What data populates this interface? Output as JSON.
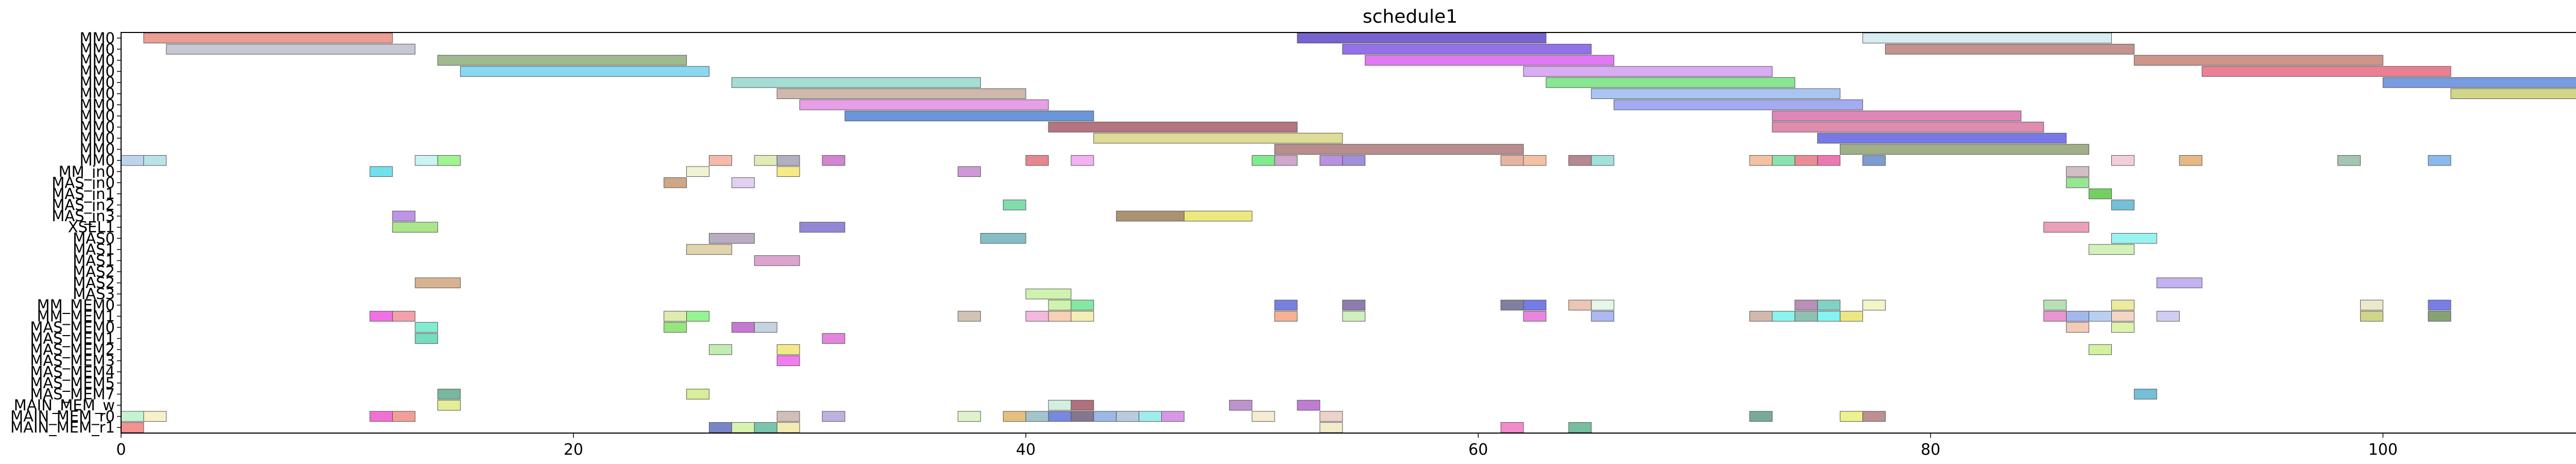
{
  "chart_data": {
    "type": "gantt",
    "title": "schedule1",
    "xlabel": "",
    "ylabel": "",
    "xlim": [
      0,
      114
    ],
    "x_ticks": [
      0,
      20,
      40,
      60,
      80,
      100
    ],
    "grid": false,
    "rows": [
      "MM0",
      "MM0",
      "MM0",
      "MM0",
      "MM0",
      "MM0",
      "MM0",
      "MM0",
      "MM0",
      "MM0",
      "MM0",
      "MM0",
      "MM_in0",
      "MAS_in0",
      "MAS_in1",
      "MAS_in2",
      "MAS_in3",
      "XSEL1",
      "MAS0",
      "MAS1",
      "MAS1",
      "MAS2",
      "MAS2",
      "MAS3",
      "MM_MEM0",
      "MM_MEM1",
      "MAS_MEM0",
      "MAS_MEM1",
      "MAS_MEM2",
      "MAS_MEM3",
      "MAS_MEM4",
      "MAS_MEM5",
      "MAS_MEM7",
      "MAIN_MEM_w",
      "MAIN_MEM_r0",
      "MAIN_MEM_r1"
    ],
    "bars": [
      {
        "row": 0,
        "start": 1,
        "end": 12,
        "color": "#e8877d"
      },
      {
        "row": 0,
        "start": 52,
        "end": 63,
        "color": "#5a3fc4"
      },
      {
        "row": 0,
        "start": 77,
        "end": 88,
        "color": "#cfe9ef"
      },
      {
        "row": 1,
        "start": 2,
        "end": 13,
        "color": "#b9bccb"
      },
      {
        "row": 1,
        "start": 54,
        "end": 65,
        "color": "#7b52e0"
      },
      {
        "row": 1,
        "start": 78,
        "end": 89,
        "color": "#b77a76"
      },
      {
        "row": 2,
        "start": 14,
        "end": 25,
        "color": "#8aab78"
      },
      {
        "row": 2,
        "start": 55,
        "end": 66,
        "color": "#da5cf2"
      },
      {
        "row": 2,
        "start": 89,
        "end": 100,
        "color": "#c37f70"
      },
      {
        "row": 3,
        "start": 15,
        "end": 26,
        "color": "#6fcff0"
      },
      {
        "row": 3,
        "start": 62,
        "end": 73,
        "color": "#d19af0"
      },
      {
        "row": 3,
        "start": 92,
        "end": 103,
        "color": "#e6647e"
      },
      {
        "row": 4,
        "start": 27,
        "end": 38,
        "color": "#8fd6c9"
      },
      {
        "row": 4,
        "start": 63,
        "end": 74,
        "color": "#6fe07a"
      },
      {
        "row": 4,
        "start": 100,
        "end": 111,
        "color": "#5b85d8"
      },
      {
        "row": 5,
        "start": 29,
        "end": 40,
        "color": "#c4a89c"
      },
      {
        "row": 5,
        "start": 65,
        "end": 76,
        "color": "#96b9ef"
      },
      {
        "row": 5,
        "start": 103,
        "end": 114,
        "color": "#c8cd6e"
      },
      {
        "row": 6,
        "start": 30,
        "end": 41,
        "color": "#e38ae2"
      },
      {
        "row": 6,
        "start": 66,
        "end": 77,
        "color": "#8f98ee"
      },
      {
        "row": 7,
        "start": 32,
        "end": 43,
        "color": "#4a7fd1"
      },
      {
        "row": 7,
        "start": 73,
        "end": 84,
        "color": "#d96aaa"
      },
      {
        "row": 8,
        "start": 41,
        "end": 52,
        "color": "#a45664"
      },
      {
        "row": 8,
        "start": 73,
        "end": 85,
        "color": "#d8739c"
      },
      {
        "row": 9,
        "start": 43,
        "end": 54,
        "color": "#d8d47e"
      },
      {
        "row": 9,
        "start": 75,
        "end": 86,
        "color": "#5a5ce0"
      },
      {
        "row": 10,
        "start": 51,
        "end": 62,
        "color": "#a87474"
      },
      {
        "row": 10,
        "start": 76,
        "end": 87,
        "color": "#8b9e6d"
      },
      {
        "row": 11,
        "start": 0,
        "end": 1,
        "color": "#aecbe8"
      },
      {
        "row": 11,
        "start": 1,
        "end": 2,
        "color": "#a9dde2"
      },
      {
        "row": 11,
        "start": 13,
        "end": 14,
        "color": "#bdf2ef"
      },
      {
        "row": 11,
        "start": 14,
        "end": 15,
        "color": "#8bf27a"
      },
      {
        "row": 11,
        "start": 26,
        "end": 27,
        "color": "#f5a99a"
      },
      {
        "row": 11,
        "start": 28,
        "end": 29,
        "color": "#d9e8a5"
      },
      {
        "row": 11,
        "start": 29,
        "end": 30,
        "color": "#a29db5"
      },
      {
        "row": 11,
        "start": 31,
        "end": 32,
        "color": "#c86ac6"
      },
      {
        "row": 11,
        "start": 40,
        "end": 41,
        "color": "#e06c78"
      },
      {
        "row": 11,
        "start": 42,
        "end": 43,
        "color": "#f29ff0"
      },
      {
        "row": 11,
        "start": 50,
        "end": 51,
        "color": "#62e872"
      },
      {
        "row": 11,
        "start": 51,
        "end": 52,
        "color": "#c692c0"
      },
      {
        "row": 11,
        "start": 53,
        "end": 54,
        "color": "#a879d8"
      },
      {
        "row": 11,
        "start": 54,
        "end": 55,
        "color": "#8d76d4"
      },
      {
        "row": 11,
        "start": 61,
        "end": 62,
        "color": "#e0a28e"
      },
      {
        "row": 11,
        "start": 62,
        "end": 63,
        "color": "#f2b58e"
      },
      {
        "row": 11,
        "start": 64,
        "end": 65,
        "color": "#a56e7a"
      },
      {
        "row": 11,
        "start": 65,
        "end": 66,
        "color": "#8ed9d4"
      },
      {
        "row": 11,
        "start": 72,
        "end": 73,
        "color": "#f2b58e"
      },
      {
        "row": 11,
        "start": 73,
        "end": 74,
        "color": "#6edd9e"
      },
      {
        "row": 11,
        "start": 74,
        "end": 75,
        "color": "#e7737e"
      },
      {
        "row": 11,
        "start": 75,
        "end": 76,
        "color": "#e85aa0"
      },
      {
        "row": 11,
        "start": 77,
        "end": 78,
        "color": "#5f86c8"
      },
      {
        "row": 11,
        "start": 88,
        "end": 89,
        "color": "#f2c2d6"
      },
      {
        "row": 11,
        "start": 91,
        "end": 92,
        "color": "#e2a86a"
      },
      {
        "row": 11,
        "start": 98,
        "end": 99,
        "color": "#8fb8a0"
      },
      {
        "row": 11,
        "start": 102,
        "end": 103,
        "color": "#6ea9ec"
      },
      {
        "row": 12,
        "start": 11,
        "end": 12,
        "color": "#56d8e8"
      },
      {
        "row": 12,
        "start": 25,
        "end": 26,
        "color": "#edf0c8"
      },
      {
        "row": 12,
        "start": 29,
        "end": 30,
        "color": "#f4e56e"
      },
      {
        "row": 12,
        "start": 37,
        "end": 38,
        "color": "#c482cf"
      },
      {
        "row": 12,
        "start": 86,
        "end": 87,
        "color": "#c8b0b8"
      },
      {
        "row": 13,
        "start": 24,
        "end": 25,
        "color": "#c3946a"
      },
      {
        "row": 13,
        "start": 27,
        "end": 28,
        "color": "#dcc6f0"
      },
      {
        "row": 13,
        "start": 86,
        "end": 87,
        "color": "#7ee27a"
      },
      {
        "row": 14,
        "start": 87,
        "end": 88,
        "color": "#56c43e"
      },
      {
        "row": 15,
        "start": 39,
        "end": 40,
        "color": "#66d69a"
      },
      {
        "row": 15,
        "start": 88,
        "end": 89,
        "color": "#56b2cf"
      },
      {
        "row": 16,
        "start": 12,
        "end": 13,
        "color": "#b07ee0"
      },
      {
        "row": 16,
        "start": 44,
        "end": 47,
        "color": "#9a7a52"
      },
      {
        "row": 16,
        "start": 47,
        "end": 50,
        "color": "#e8e560"
      },
      {
        "row": 17,
        "start": 12,
        "end": 14,
        "color": "#98e070"
      },
      {
        "row": 17,
        "start": 30,
        "end": 32,
        "color": "#7b6ccc"
      },
      {
        "row": 17,
        "start": 85,
        "end": 87,
        "color": "#e78aa8"
      },
      {
        "row": 18,
        "start": 26,
        "end": 28,
        "color": "#a898b4"
      },
      {
        "row": 18,
        "start": 38,
        "end": 40,
        "color": "#6aaeb8"
      },
      {
        "row": 18,
        "start": 88,
        "end": 90,
        "color": "#84f0f0"
      },
      {
        "row": 19,
        "start": 25,
        "end": 27,
        "color": "#dccb98"
      },
      {
        "row": 19,
        "start": 87,
        "end": 89,
        "color": "#c9efaa"
      },
      {
        "row": 20,
        "start": 28,
        "end": 30,
        "color": "#d391c6"
      },
      {
        "row": 22,
        "start": 13,
        "end": 15,
        "color": "#cfa27a"
      },
      {
        "row": 22,
        "start": 90,
        "end": 92,
        "color": "#b7a0ec"
      },
      {
        "row": 23,
        "start": 40,
        "end": 42,
        "color": "#c5f09a"
      },
      {
        "row": 24,
        "start": 41,
        "end": 42,
        "color": "#c5f09a"
      },
      {
        "row": 24,
        "start": 42,
        "end": 43,
        "color": "#6be08f"
      },
      {
        "row": 24,
        "start": 51,
        "end": 52,
        "color": "#5a64d8"
      },
      {
        "row": 24,
        "start": 54,
        "end": 55,
        "color": "#74609c"
      },
      {
        "row": 24,
        "start": 61,
        "end": 62,
        "color": "#65638c"
      },
      {
        "row": 24,
        "start": 62,
        "end": 63,
        "color": "#555fe0"
      },
      {
        "row": 24,
        "start": 64,
        "end": 65,
        "color": "#e8b8a5"
      },
      {
        "row": 24,
        "start": 65,
        "end": 66,
        "color": "#dff5e0"
      },
      {
        "row": 24,
        "start": 74,
        "end": 75,
        "color": "#a877a8"
      },
      {
        "row": 24,
        "start": 75,
        "end": 76,
        "color": "#67c7b8"
      },
      {
        "row": 24,
        "start": 77,
        "end": 78,
        "color": "#f0f1bc"
      },
      {
        "row": 24,
        "start": 85,
        "end": 86,
        "color": "#a8d9a8"
      },
      {
        "row": 24,
        "start": 88,
        "end": 89,
        "color": "#e8e58a"
      },
      {
        "row": 24,
        "start": 99,
        "end": 100,
        "color": "#e8e3c0"
      },
      {
        "row": 24,
        "start": 102,
        "end": 103,
        "color": "#5a62e0"
      },
      {
        "row": 25,
        "start": 11,
        "end": 12,
        "color": "#ef50e0"
      },
      {
        "row": 25,
        "start": 12,
        "end": 13,
        "color": "#f28a9a"
      },
      {
        "row": 25,
        "start": 24,
        "end": 25,
        "color": "#d8e8a0"
      },
      {
        "row": 25,
        "start": 25,
        "end": 26,
        "color": "#7ef07a"
      },
      {
        "row": 25,
        "start": 37,
        "end": 38,
        "color": "#c6b6a2"
      },
      {
        "row": 25,
        "start": 40,
        "end": 41,
        "color": "#f2a8d8"
      },
      {
        "row": 25,
        "start": 41,
        "end": 42,
        "color": "#f5c6a5"
      },
      {
        "row": 25,
        "start": 42,
        "end": 43,
        "color": "#f0eaa0"
      },
      {
        "row": 25,
        "start": 51,
        "end": 52,
        "color": "#f4a07e"
      },
      {
        "row": 25,
        "start": 54,
        "end": 55,
        "color": "#c4ecb0"
      },
      {
        "row": 25,
        "start": 62,
        "end": 63,
        "color": "#e46ad8"
      },
      {
        "row": 25,
        "start": 65,
        "end": 66,
        "color": "#9aa8f0"
      },
      {
        "row": 25,
        "start": 72,
        "end": 73,
        "color": "#c8a898"
      },
      {
        "row": 25,
        "start": 73,
        "end": 74,
        "color": "#6ff0ea"
      },
      {
        "row": 25,
        "start": 74,
        "end": 75,
        "color": "#78b2a0"
      },
      {
        "row": 25,
        "start": 75,
        "end": 76,
        "color": "#67f2ee"
      },
      {
        "row": 25,
        "start": 76,
        "end": 77,
        "color": "#e8e068"
      },
      {
        "row": 25,
        "start": 85,
        "end": 86,
        "color": "#e77ec6"
      },
      {
        "row": 25,
        "start": 86,
        "end": 87,
        "color": "#8ea8e8"
      },
      {
        "row": 25,
        "start": 87,
        "end": 88,
        "color": "#a9c4ef"
      },
      {
        "row": 25,
        "start": 88,
        "end": 89,
        "color": "#f2ccb8"
      },
      {
        "row": 25,
        "start": 90,
        "end": 91,
        "color": "#c4c3ef"
      },
      {
        "row": 25,
        "start": 99,
        "end": 100,
        "color": "#c8cb6e"
      },
      {
        "row": 25,
        "start": 102,
        "end": 103,
        "color": "#6b8d56"
      },
      {
        "row": 26,
        "start": 13,
        "end": 14,
        "color": "#66e8c8"
      },
      {
        "row": 26,
        "start": 24,
        "end": 25,
        "color": "#80e060"
      },
      {
        "row": 26,
        "start": 27,
        "end": 28,
        "color": "#b85ac8"
      },
      {
        "row": 26,
        "start": 28,
        "end": 29,
        "color": "#b8c8d8"
      },
      {
        "row": 26,
        "start": 86,
        "end": 87,
        "color": "#f2bfa8"
      },
      {
        "row": 26,
        "start": 88,
        "end": 89,
        "color": "#d8f09a"
      },
      {
        "row": 27,
        "start": 13,
        "end": 14,
        "color": "#58d6b0"
      },
      {
        "row": 27,
        "start": 31,
        "end": 32,
        "color": "#dd69d8"
      },
      {
        "row": 28,
        "start": 26,
        "end": 27,
        "color": "#b5e8a0"
      },
      {
        "row": 28,
        "start": 29,
        "end": 30,
        "color": "#f0e46e"
      },
      {
        "row": 28,
        "start": 87,
        "end": 88,
        "color": "#c8ef8a"
      },
      {
        "row": 29,
        "start": 29,
        "end": 30,
        "color": "#ee60ee"
      },
      {
        "row": 32,
        "start": 14,
        "end": 15,
        "color": "#5aa888"
      },
      {
        "row": 32,
        "start": 25,
        "end": 26,
        "color": "#d0ec80"
      },
      {
        "row": 32,
        "start": 89,
        "end": 90,
        "color": "#56b0cf"
      },
      {
        "row": 33,
        "start": 14,
        "end": 15,
        "color": "#dfe880"
      },
      {
        "row": 33,
        "start": 41,
        "end": 42,
        "color": "#c8ecd8"
      },
      {
        "row": 33,
        "start": 42,
        "end": 43,
        "color": "#a05060"
      },
      {
        "row": 33,
        "start": 49,
        "end": 50,
        "color": "#b07ac0"
      },
      {
        "row": 33,
        "start": 52,
        "end": 53,
        "color": "#b060c8"
      },
      {
        "row": 33,
        "start": 111,
        "end": 112,
        "color": "#8ab0e8"
      },
      {
        "row": 33,
        "start": 113,
        "end": 114,
        "color": "#88bfa8"
      },
      {
        "row": 34,
        "start": 0,
        "end": 1,
        "color": "#b8f0c8"
      },
      {
        "row": 34,
        "start": 1,
        "end": 2,
        "color": "#f5eec0"
      },
      {
        "row": 34,
        "start": 11,
        "end": 12,
        "color": "#f050c8"
      },
      {
        "row": 34,
        "start": 12,
        "end": 13,
        "color": "#f08a80"
      },
      {
        "row": 34,
        "start": 29,
        "end": 30,
        "color": "#c8b0a8"
      },
      {
        "row": 34,
        "start": 31,
        "end": 32,
        "color": "#b0a0d8"
      },
      {
        "row": 34,
        "start": 37,
        "end": 38,
        "color": "#d8f0c0"
      },
      {
        "row": 34,
        "start": 39,
        "end": 40,
        "color": "#e0b060"
      },
      {
        "row": 34,
        "start": 40,
        "end": 41,
        "color": "#8eb8c0"
      },
      {
        "row": 34,
        "start": 41,
        "end": 42,
        "color": "#5a6cd8"
      },
      {
        "row": 34,
        "start": 42,
        "end": 43,
        "color": "#6a5878"
      },
      {
        "row": 34,
        "start": 43,
        "end": 44,
        "color": "#88a8e0"
      },
      {
        "row": 34,
        "start": 44,
        "end": 45,
        "color": "#a8c0d8"
      },
      {
        "row": 34,
        "start": 45,
        "end": 46,
        "color": "#8ae8e8"
      },
      {
        "row": 34,
        "start": 46,
        "end": 47,
        "color": "#d080e0"
      },
      {
        "row": 34,
        "start": 50,
        "end": 51,
        "color": "#f0e8c8"
      },
      {
        "row": 34,
        "start": 53,
        "end": 54,
        "color": "#e8c8c0"
      },
      {
        "row": 34,
        "start": 72,
        "end": 73,
        "color": "#5a9888"
      },
      {
        "row": 34,
        "start": 76,
        "end": 77,
        "color": "#e8f070"
      },
      {
        "row": 34,
        "start": 77,
        "end": 78,
        "color": "#b07878"
      },
      {
        "row": 35,
        "start": 0,
        "end": 1,
        "color": "#f27a78"
      },
      {
        "row": 35,
        "start": 26,
        "end": 27,
        "color": "#5a6ab8"
      },
      {
        "row": 35,
        "start": 27,
        "end": 28,
        "color": "#d0f0a0"
      },
      {
        "row": 35,
        "start": 28,
        "end": 29,
        "color": "#5ab898"
      },
      {
        "row": 35,
        "start": 29,
        "end": 30,
        "color": "#f0e8a0"
      },
      {
        "row": 35,
        "start": 53,
        "end": 54,
        "color": "#f0e8c0"
      },
      {
        "row": 35,
        "start": 61,
        "end": 62,
        "color": "#f070c0"
      },
      {
        "row": 35,
        "start": 64,
        "end": 65,
        "color": "#58b088"
      }
    ]
  }
}
